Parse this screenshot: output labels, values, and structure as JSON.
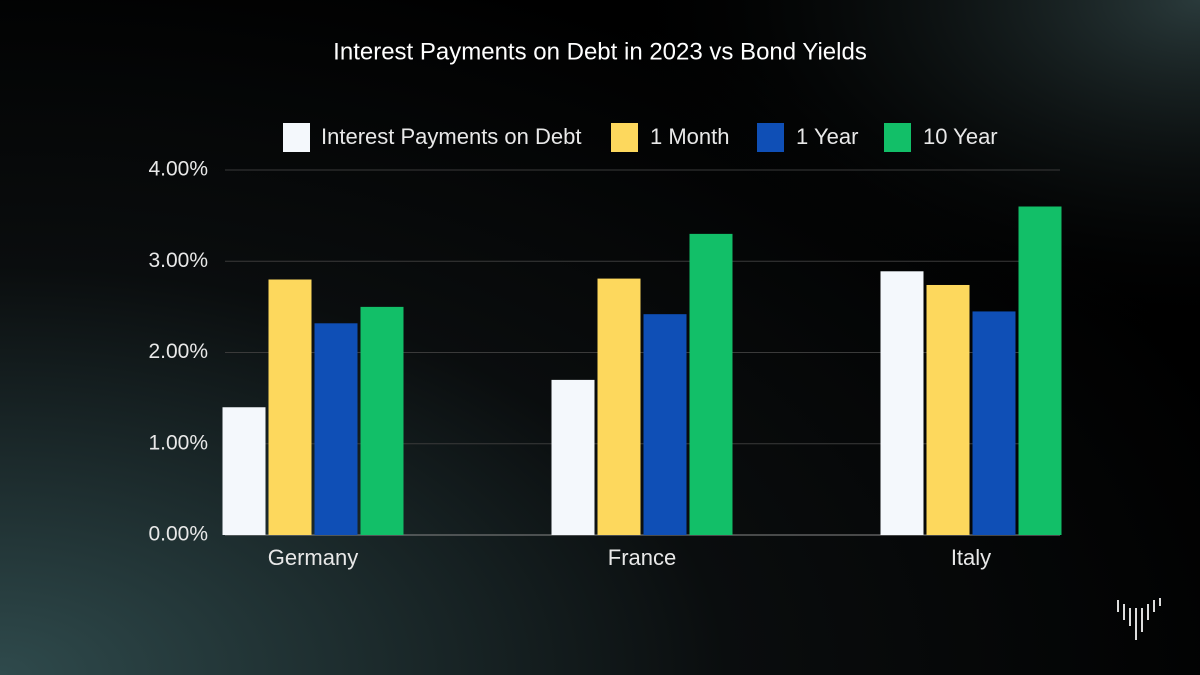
{
  "chart_data": {
    "type": "bar",
    "title": "Interest Payments on Debt in 2023 vs Bond Yields",
    "categories": [
      "Germany",
      "France",
      "Italy"
    ],
    "series": [
      {
        "name": "Interest Payments on Debt",
        "color": "#f4f8fc",
        "values": [
          1.4,
          1.7,
          2.89
        ]
      },
      {
        "name": "1 Month",
        "color": "#fdd85d",
        "values": [
          2.8,
          2.81,
          2.74
        ]
      },
      {
        "name": "1 Year",
        "color": "#0f4fb6",
        "values": [
          2.32,
          2.42,
          2.45
        ]
      },
      {
        "name": "10 Year",
        "color": "#12bf68",
        "values": [
          2.5,
          3.3,
          3.6
        ]
      }
    ],
    "ylim": [
      0,
      4
    ],
    "yticks": [
      {
        "value": 0,
        "label": "0.00%"
      },
      {
        "value": 1,
        "label": "1.00%"
      },
      {
        "value": 2,
        "label": "2.00%"
      },
      {
        "value": 3,
        "label": "3.00%"
      },
      {
        "value": 4,
        "label": "4.00%"
      }
    ],
    "grid": true,
    "legend": "top"
  }
}
